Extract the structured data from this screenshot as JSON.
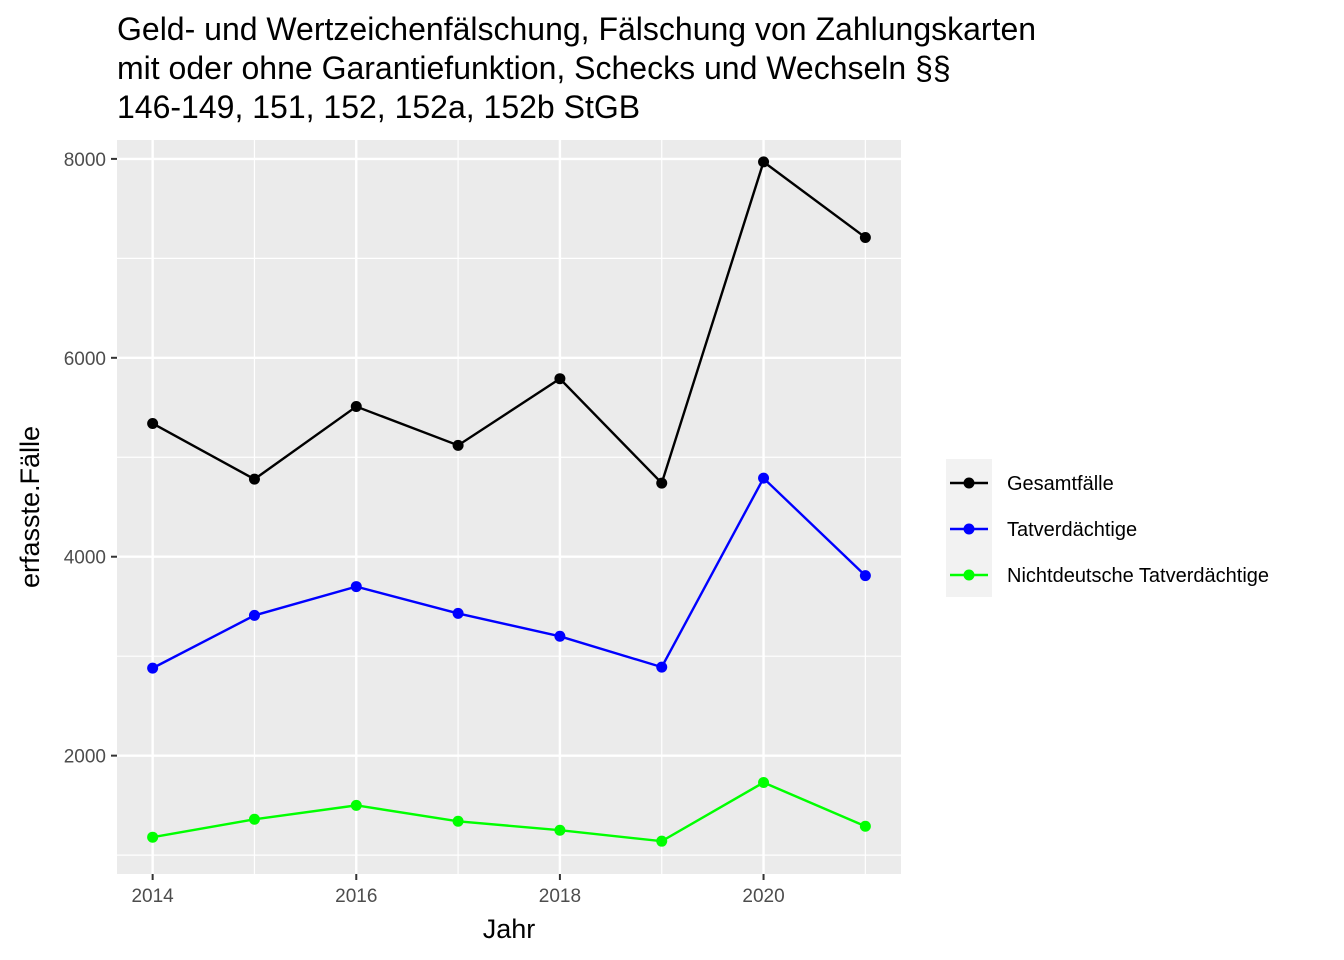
{
  "chart_data": {
    "type": "line",
    "title_lines": [
      "Geld- und Wertzeichenfälschung, Fälschung von Zahlungskarten",
      "mit oder ohne Garantiefunktion, Schecks und Wechseln §§",
      "146-149, 151, 152, 152a, 152b StGB"
    ],
    "xlabel": "Jahr",
    "ylabel": "erfasste.Fälle",
    "x": [
      2014,
      2015,
      2016,
      2017,
      2018,
      2019,
      2020,
      2021
    ],
    "xlim": [
      2013.65,
      2021.35
    ],
    "ylim": [
      810,
      8190
    ],
    "x_ticks": [
      {
        "value": 2014,
        "label": "2014"
      },
      {
        "value": 2016,
        "label": "2016"
      },
      {
        "value": 2018,
        "label": "2018"
      },
      {
        "value": 2020,
        "label": "2020"
      }
    ],
    "x_minor": [
      2015,
      2017,
      2019,
      2021
    ],
    "y_ticks": [
      {
        "value": 2000,
        "label": "2000"
      },
      {
        "value": 4000,
        "label": "4000"
      },
      {
        "value": 6000,
        "label": "6000"
      },
      {
        "value": 8000,
        "label": "8000"
      }
    ],
    "y_minor": [
      1000,
      3000,
      5000,
      7000
    ],
    "grid": true,
    "panel_background": "#ebebeb",
    "grid_color": "#ffffff",
    "legend_position": "right",
    "series": [
      {
        "name": "Gesamtfälle",
        "color": "#000000",
        "values": [
          5340,
          4780,
          5510,
          5120,
          5790,
          4740,
          7970,
          7210
        ]
      },
      {
        "name": "Tatverdächtige",
        "color": "#0000ff",
        "values": [
          2880,
          3410,
          3700,
          3430,
          3200,
          2890,
          4790,
          3810
        ]
      },
      {
        "name": "Nichtdeutsche Tatverdächtige",
        "color": "#00ff00",
        "values": [
          1180,
          1360,
          1500,
          1340,
          1250,
          1140,
          1730,
          1290
        ]
      }
    ]
  }
}
